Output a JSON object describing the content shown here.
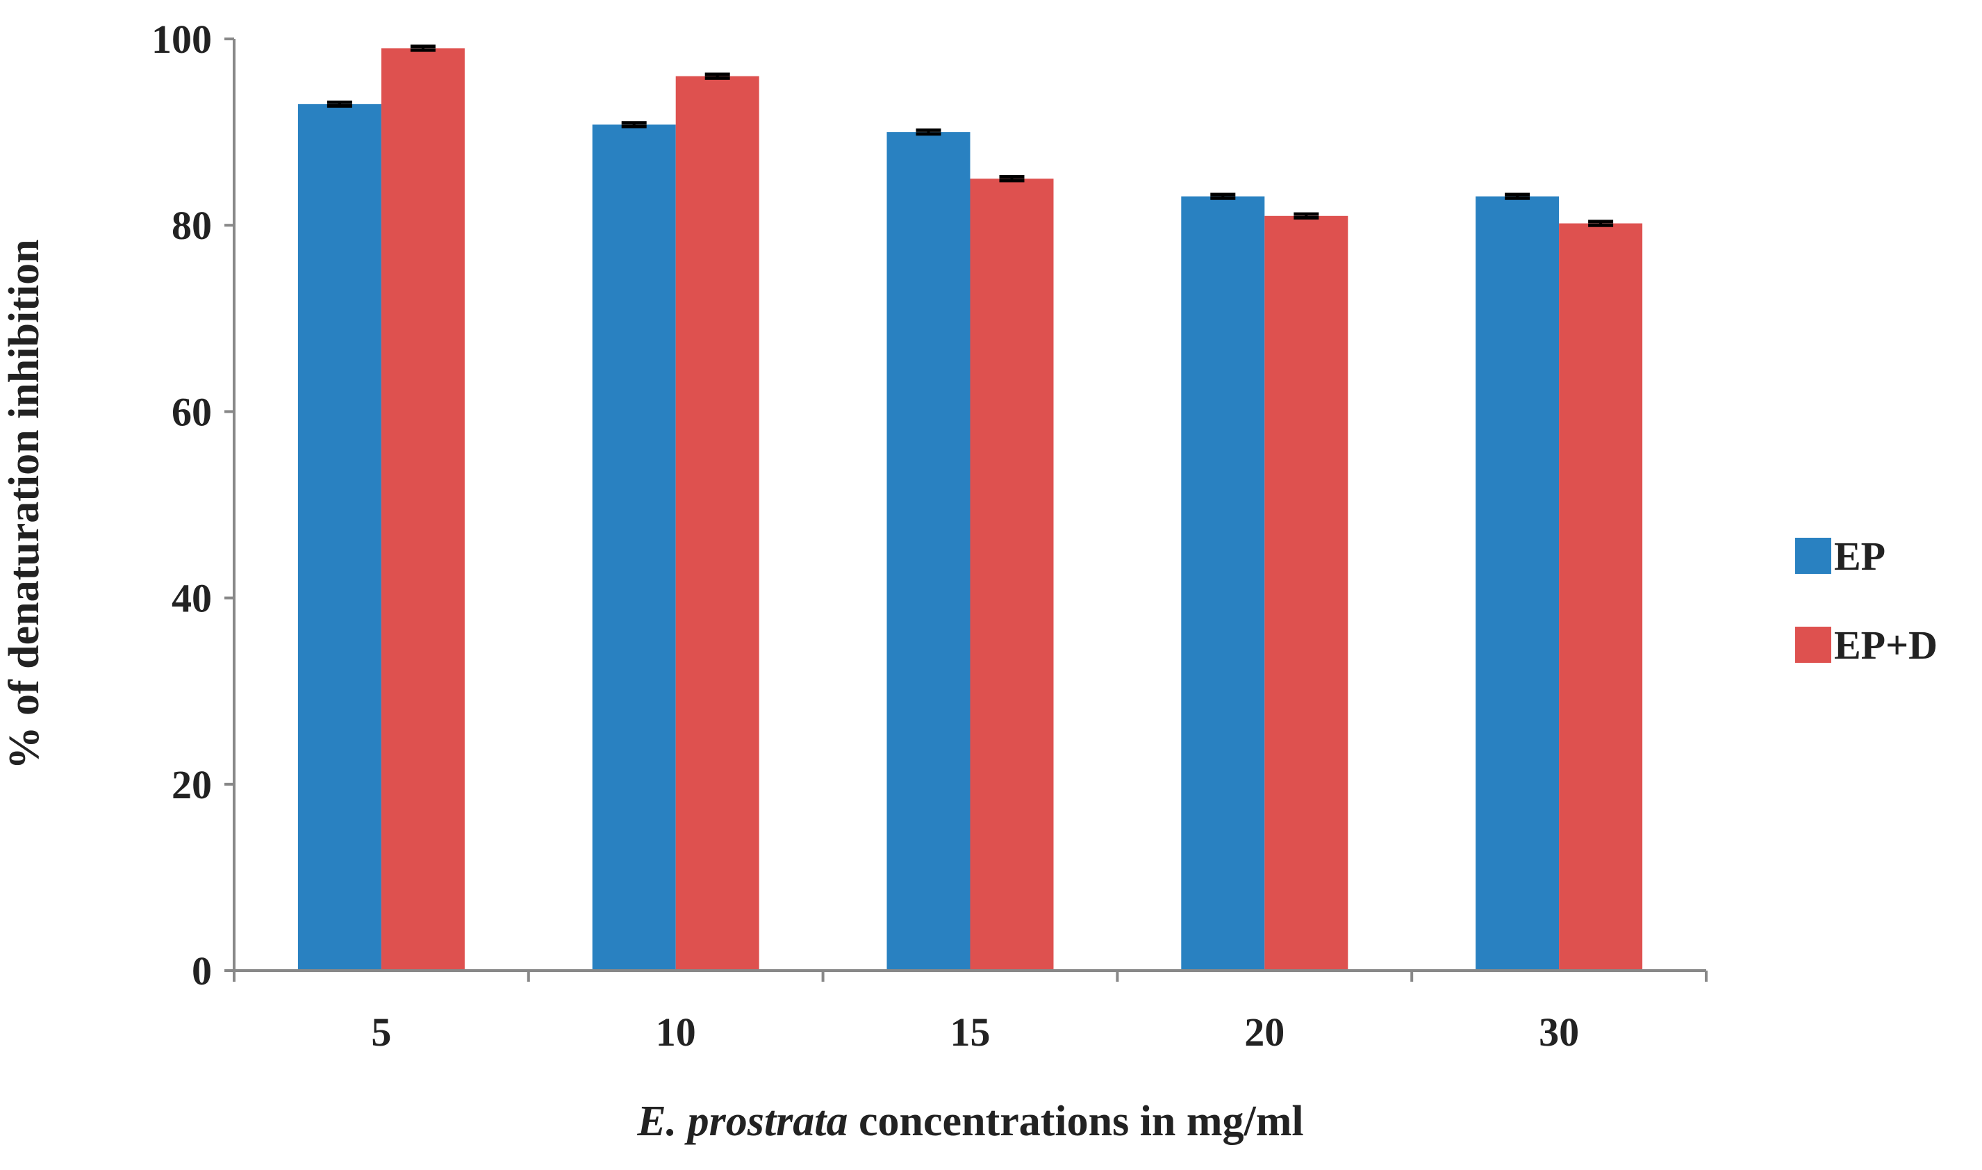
{
  "chart_data": {
    "type": "bar",
    "ylabel": "% of denaturation inhibition",
    "xlabel": [
      "E. prostrata",
      "concentrations in mg/ml"
    ],
    "categories": [
      "5",
      "10",
      "15",
      "20",
      "30"
    ],
    "series": [
      {
        "name": "EP",
        "color": "#2981c1",
        "values": [
          93,
          90.8,
          90,
          83.1,
          83.1
        ],
        "errors": [
          0.2,
          0.2,
          0.2,
          0.2,
          0.2
        ]
      },
      {
        "name": "EP+D",
        "color": "#de514f",
        "values": [
          99,
          96,
          85,
          81,
          80.2
        ],
        "errors": [
          0.2,
          0.2,
          0.2,
          0.2,
          0.2
        ]
      }
    ],
    "ylim": [
      0,
      100
    ],
    "yticks": [
      0,
      20,
      40,
      60,
      80,
      100
    ],
    "grid": false,
    "legend": "right"
  }
}
